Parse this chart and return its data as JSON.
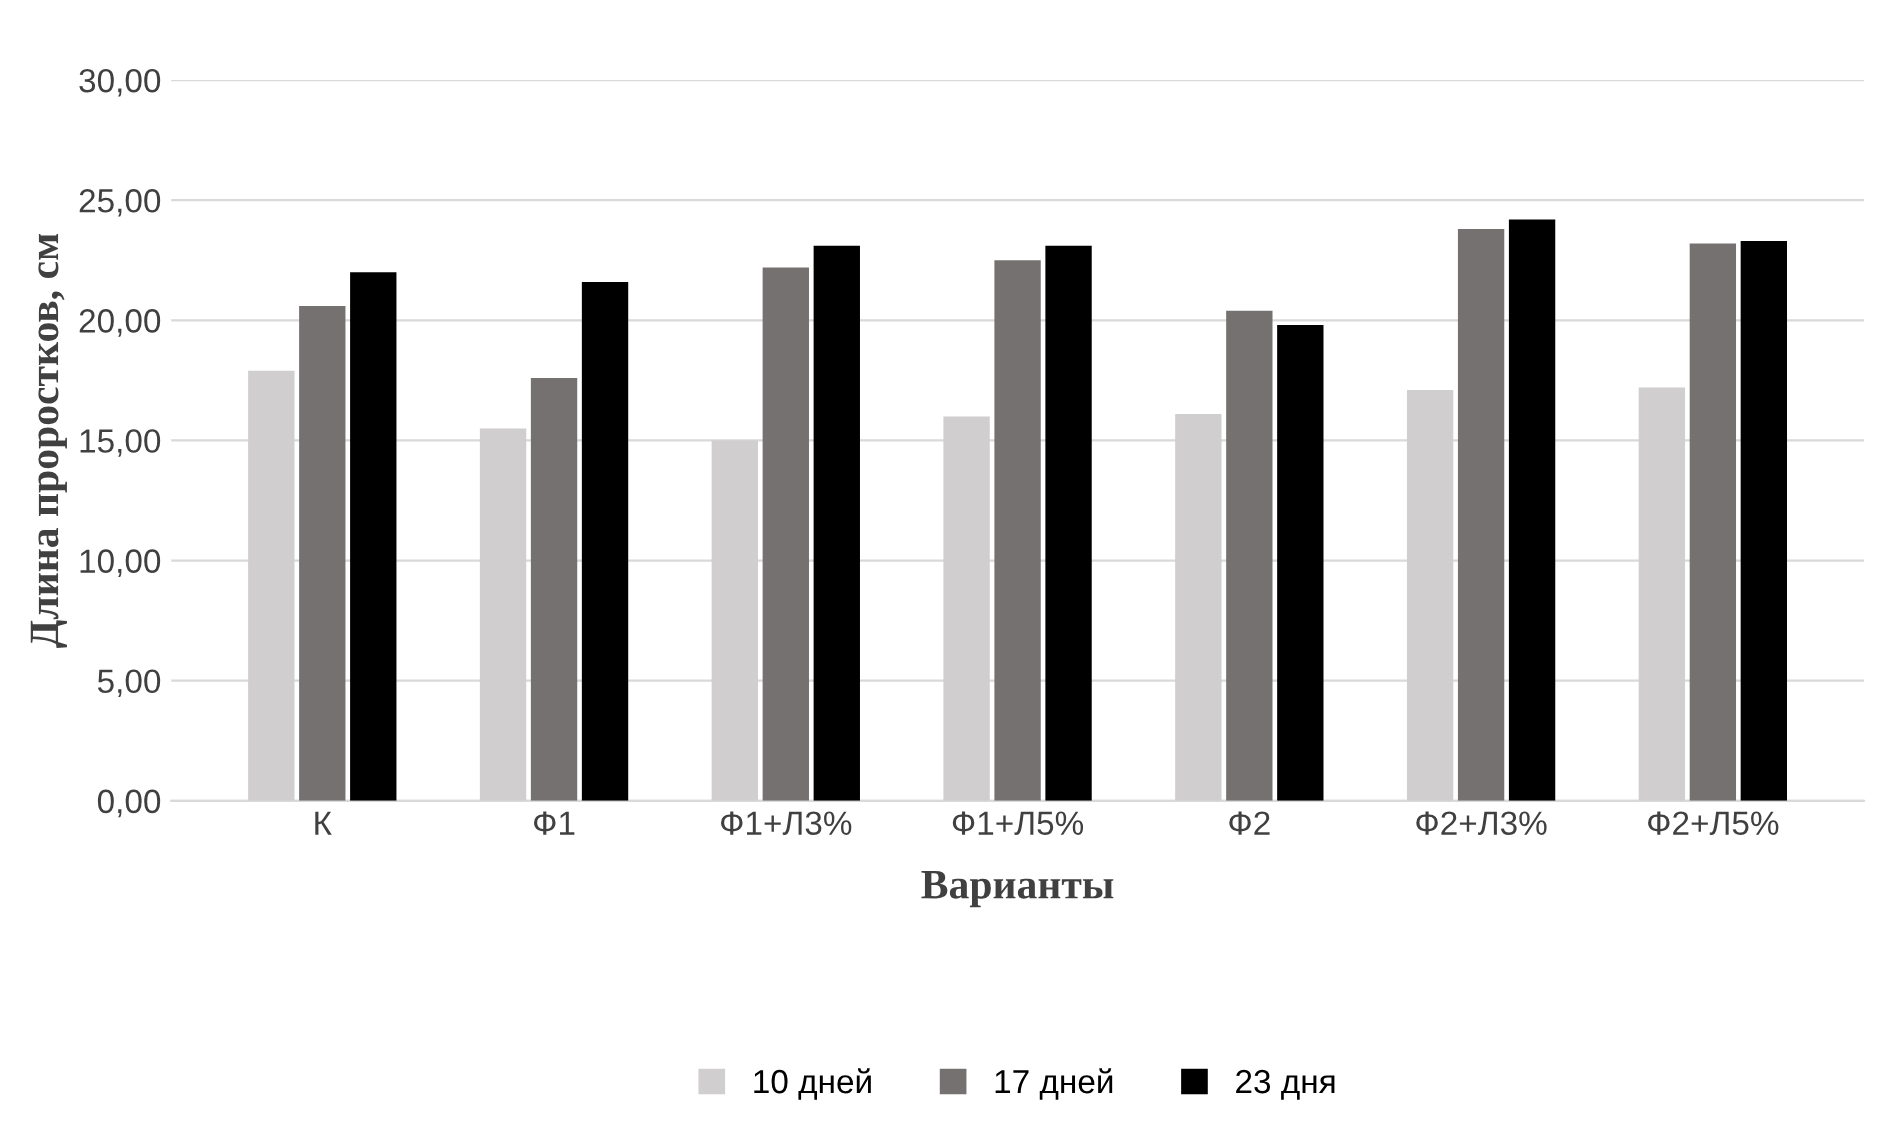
{
  "chart_data": {
    "type": "bar",
    "xlabel": "Варианты",
    "ylabel": "Длина проростков, см",
    "categories": [
      "К",
      "Ф1",
      "Ф1+Л3%",
      "Ф1+Л5%",
      "Ф2",
      "Ф2+Л3%",
      "Ф2+Л5%"
    ],
    "series": [
      {
        "name": "10 дней",
        "color": "#d0cece",
        "values": [
          17.9,
          15.5,
          15.0,
          16.0,
          16.1,
          17.1,
          17.2
        ]
      },
      {
        "name": "17 дней",
        "color": "#767171",
        "values": [
          20.6,
          17.6,
          22.2,
          22.5,
          20.4,
          23.8,
          23.2
        ]
      },
      {
        "name": "23 дня",
        "color": "#000000",
        "values": [
          22.0,
          21.6,
          23.1,
          23.1,
          19.8,
          24.2,
          23.3
        ]
      }
    ],
    "ylim": [
      0,
      30
    ],
    "yticks": [
      {
        "value": 0,
        "label": "0,00"
      },
      {
        "value": 5,
        "label": "5,00"
      },
      {
        "value": 10,
        "label": "10,00"
      },
      {
        "value": 15,
        "label": "15,00"
      },
      {
        "value": 20,
        "label": "20,00"
      },
      {
        "value": 25,
        "label": "25,00"
      },
      {
        "value": 30,
        "label": "30,00"
      }
    ],
    "grid": "y",
    "legend": "bottom"
  }
}
